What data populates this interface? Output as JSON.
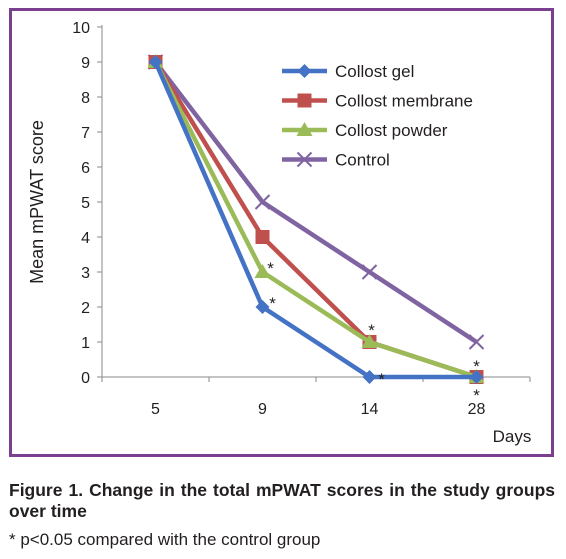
{
  "chart_data": {
    "type": "line",
    "categories": [
      "5",
      "9",
      "14",
      "28"
    ],
    "xlabel": "Days",
    "ylabel": "Mean mPWAT score",
    "ylim": [
      0,
      10
    ],
    "yticks": [
      0,
      1,
      2,
      3,
      4,
      5,
      6,
      7,
      8,
      9,
      10
    ],
    "grid": false,
    "legend_position": "top-right",
    "series": [
      {
        "name": "Collost gel",
        "values": [
          9,
          2,
          0,
          0
        ],
        "color": "#4472c4",
        "marker": "diamond",
        "significant": [
          false,
          true,
          true,
          true
        ]
      },
      {
        "name": "Collost membrane",
        "values": [
          9,
          4,
          1,
          0
        ],
        "color": "#c0504d",
        "marker": "square",
        "significant": [
          false,
          false,
          false,
          false
        ]
      },
      {
        "name": "Collost powder",
        "values": [
          9,
          3,
          1,
          0
        ],
        "color": "#9bbb59",
        "marker": "triangle",
        "significant": [
          false,
          true,
          true,
          true
        ]
      },
      {
        "name": "Control",
        "values": [
          9,
          5,
          3,
          1
        ],
        "color": "#8064a2",
        "marker": "x",
        "significant": [
          false,
          false,
          false,
          false
        ]
      }
    ],
    "significance_symbol": "*"
  },
  "caption": {
    "title": "Figure 1. Change in the total mPWAT scores in the study groups over time",
    "note": "* p<0.05 compared with the control group"
  }
}
